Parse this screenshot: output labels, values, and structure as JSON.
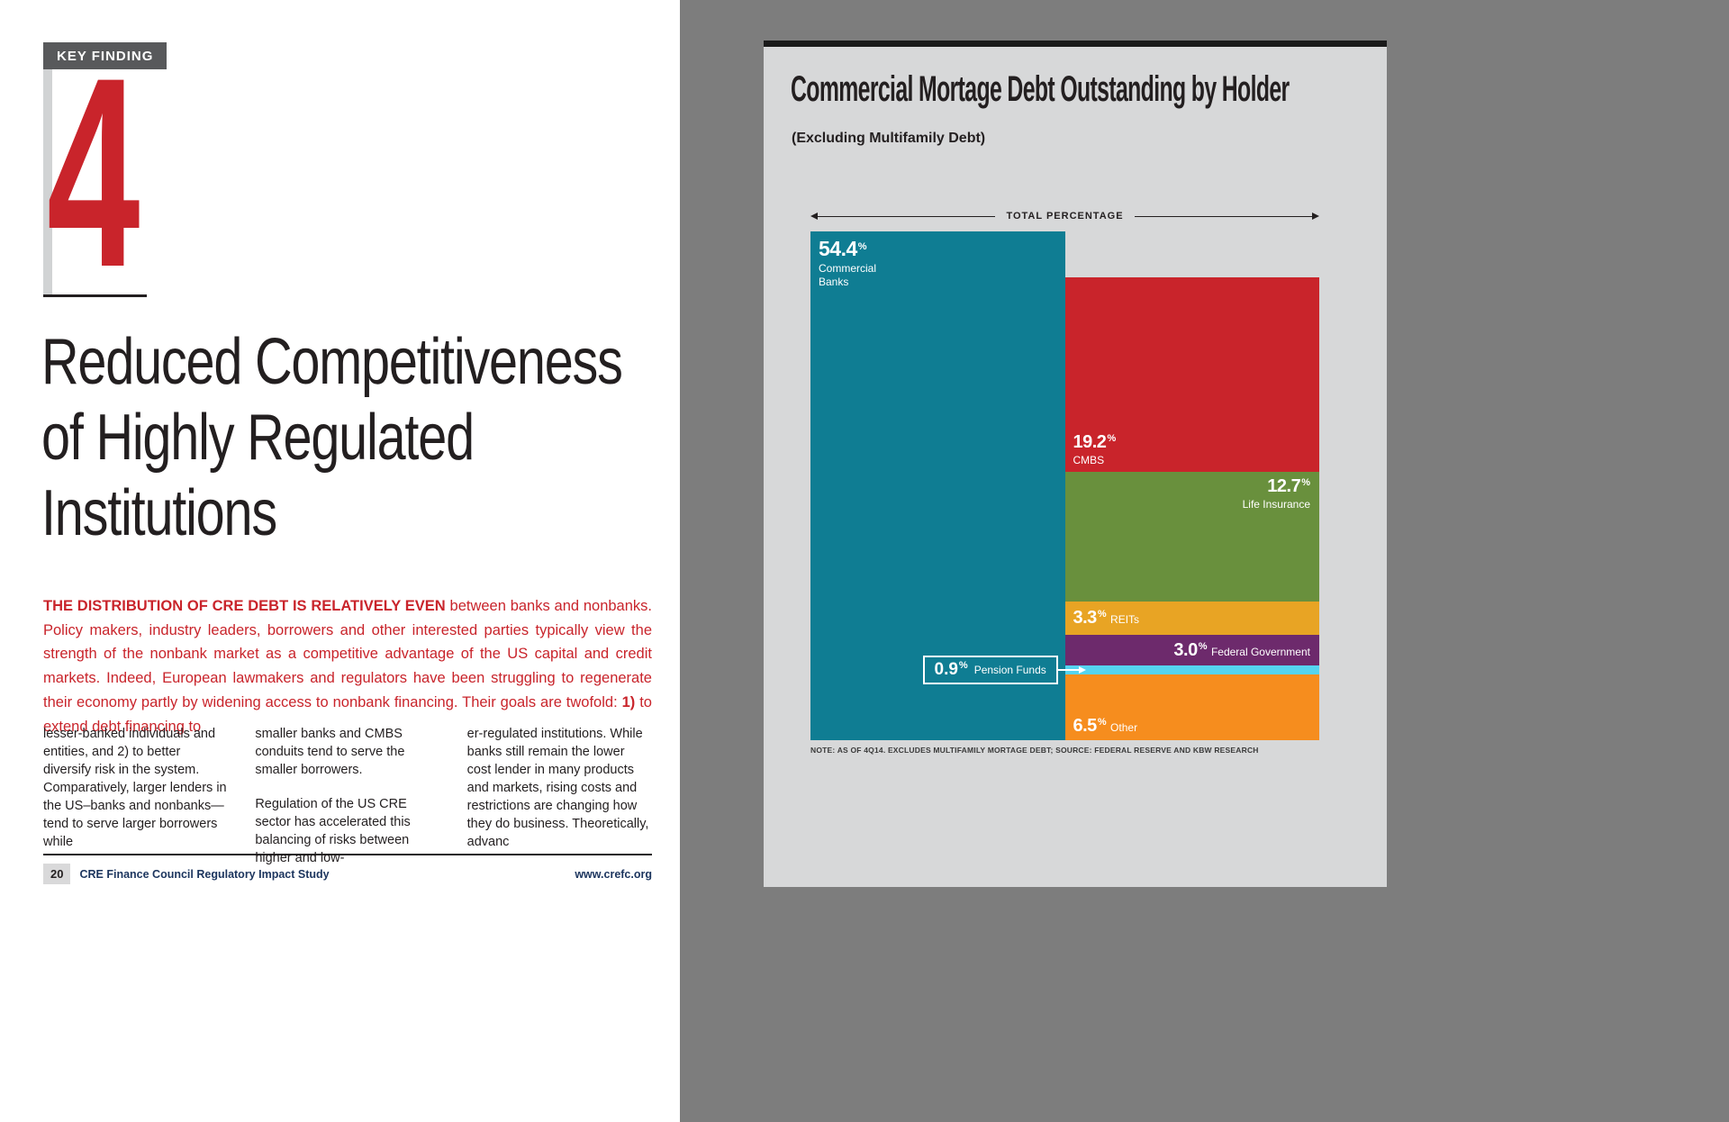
{
  "left_page": {
    "key_finding_label": "KEY FINDING",
    "key_finding_number": "4",
    "title_lines": [
      "Reduced Competitiveness",
      "of Highly Regulated",
      "Institutions"
    ],
    "intro": {
      "lead": "THE DISTRIBUTION OF CRE DEBT IS RELATIVELY EVEN",
      "body_1": "between banks and nonbanks. Policy makers, industry leaders, borrowers and other interested parties typically view the strength of the nonbank market as a competitive advantage of the US capital and credit markets. Indeed, European lawmakers and regulators have been struggling to regenerate their economy partly by widening access to nonbank financing. Their goals are twofold:",
      "bold_marker": "1)",
      "body_2": "to extend debt financing to"
    },
    "columns": [
      [
        "lesser-banked individuals and entities, and 2) to better diversify risk in the system. Comparatively, larger lenders in the US–banks and nonbanks—tend to serve larger borrowers while"
      ],
      [
        "smaller banks and CMBS conduits tend to serve the smaller borrowers.",
        "Regulation of the US CRE sector has accelerated this balancing of risks between higher and low-"
      ],
      [
        "er-regulated institutions. While banks still remain the lower cost lender in many products and markets, rising costs and restrictions are changing how they do business. Theoretically, advanc"
      ]
    ],
    "footer": {
      "page_number": "20",
      "doc_title": "CRE Finance Council Regulatory Impact Study",
      "url": "www.crefc.org"
    }
  },
  "colors": {
    "accent_red": "#c9242b",
    "backdrop_gray": "#7d7d7d",
    "panel_gray": "#d7d8d9",
    "key_finding_gray": "#58595b"
  },
  "chart_data": {
    "type": "treemap",
    "title": "Commercial Mortage Debt Outstanding by Holder",
    "subtitle": "(Excluding Multifamily Debt)",
    "axis_label": "TOTAL PERCENTAGE",
    "note": "NOTE: AS OF 4Q14. EXCLUDES MULTIFAMILY MORTAGE DEBT; SOURCE: FEDERAL RESERVE AND KBW RESEARCH",
    "unit": "%",
    "total": 100,
    "segments": [
      {
        "label": "Commercial Banks",
        "value": 54.4,
        "color": "#0f7d93",
        "column": "left",
        "label_pos": "top-left"
      },
      {
        "label": "CMBS",
        "value": 19.2,
        "color": "#c9242b",
        "column": "right",
        "label_pos": "bottom-left"
      },
      {
        "label": "Life Insurance",
        "value": 12.7,
        "color": "#69903d",
        "column": "right",
        "label_pos": "top-right"
      },
      {
        "label": "REITs",
        "value": 3.3,
        "color": "#e8a424",
        "column": "right",
        "label_pos": "left-inline"
      },
      {
        "label": "Federal Government",
        "value": 3.0,
        "color": "#6d2a6c",
        "column": "right",
        "label_pos": "right-inline"
      },
      {
        "label": "Pension Funds",
        "value": 0.9,
        "color": "#55d4f0",
        "column": "right",
        "label_pos": "callout-left"
      },
      {
        "label": "Other",
        "value": 6.5,
        "color": "#f68d1e",
        "column": "right",
        "label_pos": "bottom-left-inline"
      }
    ]
  }
}
